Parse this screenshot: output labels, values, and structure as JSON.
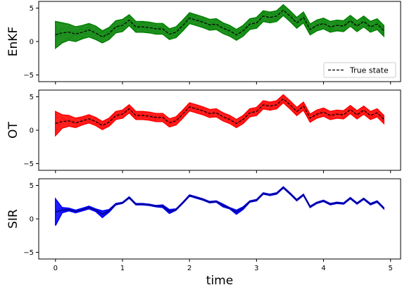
{
  "chart_data": [
    {
      "type": "line",
      "ylabel": "EnKF",
      "xlim": [
        -0.25,
        5.15
      ],
      "ylim": [
        -6,
        6
      ],
      "xticks": [
        0,
        1,
        2,
        3,
        4,
        5
      ],
      "yticks": [
        -5,
        0,
        5
      ],
      "legend": {
        "position": "lower-right",
        "entries": [
          "True state"
        ]
      },
      "band_color": "#008000",
      "band_width": [
        2.0,
        1.5,
        1.2,
        1.1,
        1.0,
        1.0,
        1.0,
        0.9,
        0.9,
        0.9,
        0.9,
        0.8,
        0.8,
        0.8,
        0.8,
        0.8,
        0.8,
        0.8,
        0.8,
        0.8,
        0.8,
        0.8,
        0.8,
        0.8,
        0.8,
        0.8,
        0.8,
        0.8,
        0.8,
        0.8,
        0.8,
        0.8,
        0.8,
        0.8,
        0.8,
        0.8,
        0.8,
        0.8,
        0.8,
        0.8,
        0.8,
        0.8,
        0.8,
        0.8,
        0.8,
        0.8,
        0.8,
        0.8,
        0.8,
        0.8
      ],
      "truth_series": "True state"
    },
    {
      "type": "line",
      "ylabel": "OT",
      "xlim": [
        -0.25,
        5.15
      ],
      "ylim": [
        -6,
        6
      ],
      "xticks": [
        0,
        1,
        2,
        3,
        4,
        5
      ],
      "yticks": [
        -5,
        0,
        5
      ],
      "band_color": "#ff0000",
      "band_width": [
        1.8,
        1.0,
        0.8,
        0.7,
        0.6,
        0.6,
        0.6,
        0.6,
        0.6,
        0.6,
        0.6,
        0.6,
        0.6,
        0.6,
        0.6,
        0.6,
        0.6,
        0.6,
        0.6,
        0.6,
        0.6,
        0.6,
        0.6,
        0.6,
        0.6,
        0.6,
        0.6,
        0.6,
        0.6,
        0.6,
        0.6,
        0.6,
        0.6,
        0.6,
        0.6,
        0.6,
        0.6,
        0.6,
        0.6,
        0.6,
        0.6,
        0.6,
        0.6,
        0.6,
        0.6,
        0.6,
        0.6,
        0.6,
        0.6,
        0.6
      ],
      "truth_series": "True state"
    },
    {
      "type": "line",
      "ylabel": "SIR",
      "xlabel": "time",
      "xlim": [
        -0.25,
        5.15
      ],
      "ylim": [
        -6,
        6
      ],
      "xticks": [
        0,
        1,
        2,
        3,
        4,
        5
      ],
      "yticks": [
        -5,
        0,
        5
      ],
      "band_color": "#0000ff",
      "band_width": [
        2.0,
        0.4,
        0.2,
        0.2,
        0.2,
        0.2,
        0.2,
        0.5,
        0.2,
        0.1,
        0.1,
        0.1,
        0.1,
        0.1,
        0.1,
        0.1,
        0.2,
        0.3,
        0.1,
        0.1,
        0.1,
        0.1,
        0.1,
        0.1,
        0.1,
        0.2,
        0.1,
        0.3,
        0.2,
        0.1,
        0.1,
        0.1,
        0.1,
        0.1,
        0.1,
        0.1,
        0.1,
        0.1,
        0.1,
        0.1,
        0.1,
        0.1,
        0.1,
        0.1,
        0.1,
        0.1,
        0.1,
        0.1,
        0.1,
        0.1
      ],
      "truth_series": "True state"
    }
  ],
  "truth": {
    "name": "True state",
    "x": [
      0,
      0.1,
      0.2,
      0.3,
      0.4,
      0.5,
      0.6,
      0.7,
      0.8,
      0.9,
      1.0,
      1.1,
      1.2,
      1.3,
      1.4,
      1.5,
      1.6,
      1.7,
      1.8,
      1.9,
      2.0,
      2.1,
      2.2,
      2.3,
      2.4,
      2.5,
      2.6,
      2.7,
      2.8,
      2.9,
      3.0,
      3.1,
      3.2,
      3.3,
      3.4,
      3.5,
      3.6,
      3.7,
      3.8,
      3.9,
      4.0,
      4.1,
      4.2,
      4.3,
      4.4,
      4.5,
      4.6,
      4.7,
      4.8,
      4.9
    ],
    "y": [
      1.0,
      1.3,
      1.4,
      1.1,
      1.4,
      1.7,
      1.3,
      0.7,
      1.2,
      2.2,
      2.4,
      3.2,
      2.2,
      2.2,
      2.1,
      1.9,
      1.9,
      1.1,
      1.4,
      2.4,
      3.5,
      3.2,
      2.9,
      2.5,
      2.6,
      2.0,
      1.6,
      1.0,
      1.6,
      2.6,
      2.8,
      3.8,
      3.6,
      3.8,
      4.7,
      3.8,
      2.8,
      3.6,
      1.8,
      2.4,
      2.7,
      2.2,
      2.4,
      2.3,
      3.1,
      2.3,
      3.0,
      2.2,
      2.6,
      1.6
    ]
  },
  "colors": {
    "truth_line": "#000000",
    "sir_truth_line": "#00008b"
  }
}
